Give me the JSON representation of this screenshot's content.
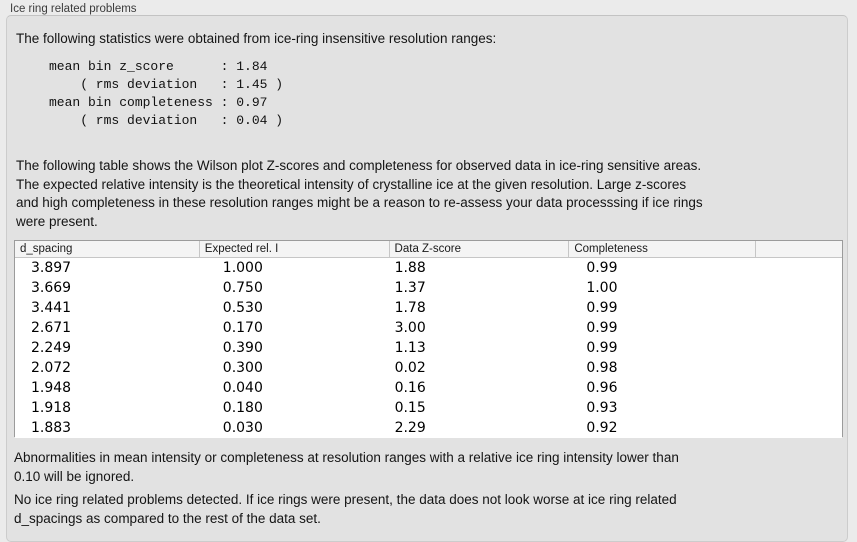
{
  "panel": {
    "title": "Ice ring related problems"
  },
  "colors": {
    "window_bg": "#ebebeb",
    "group_box_bg": "#e2e2e2",
    "table_bg": "#ffffff",
    "table_header_bg": "#f4f4f4",
    "table_border": "#9b9b9b",
    "text": "#141414"
  },
  "statistics": {
    "intro": "The following statistics were obtained from ice-ring insensitive resolution ranges:",
    "values_block": "mean bin z_score      : 1.84\n    ( rms deviation   : 1.45 )\nmean bin completeness : 0.97\n    ( rms deviation   : 0.04 )",
    "mean_bin_z_score": "1.84",
    "z_score_rms_deviation": "1.45",
    "mean_bin_completeness": "0.97",
    "completeness_rms_deviation": "0.04"
  },
  "table_description": "The following table shows the Wilson plot Z-scores and completeness for observed data in ice-ring sensitive areas.\nThe expected relative intensity is the theoretical intensity of crystalline ice at the given resolution. Large z-scores\nand high completeness in these resolution ranges might be a reason to re-assess your data processsing if ice rings\nwere present.",
  "table": {
    "columns": [
      "d_spacing",
      "Expected rel. I",
      "Data Z-score",
      "Completeness",
      ""
    ],
    "rows": [
      [
        "3.897",
        "1.000",
        "1.88",
        "0.99"
      ],
      [
        "3.669",
        "0.750",
        "1.37",
        "1.00"
      ],
      [
        "3.441",
        "0.530",
        "1.78",
        "0.99"
      ],
      [
        "2.671",
        "0.170",
        "3.00",
        "0.99"
      ],
      [
        "2.249",
        "0.390",
        "1.13",
        "0.99"
      ],
      [
        "2.072",
        "0.300",
        "0.02",
        "0.98"
      ],
      [
        "1.948",
        "0.040",
        "0.16",
        "0.96"
      ],
      [
        "1.918",
        "0.180",
        "0.15",
        "0.93"
      ],
      [
        "1.883",
        "0.030",
        "2.29",
        "0.92"
      ]
    ]
  },
  "notes": {
    "ignore_note": "Abnormalities in mean intensity or completeness at resolution ranges with a relative ice ring intensity lower than\n0.10 will be ignored.",
    "conclusion": "No ice ring related problems detected. If ice rings were present, the data does not look worse at ice ring related\nd_spacings as compared to the rest of the data set."
  }
}
